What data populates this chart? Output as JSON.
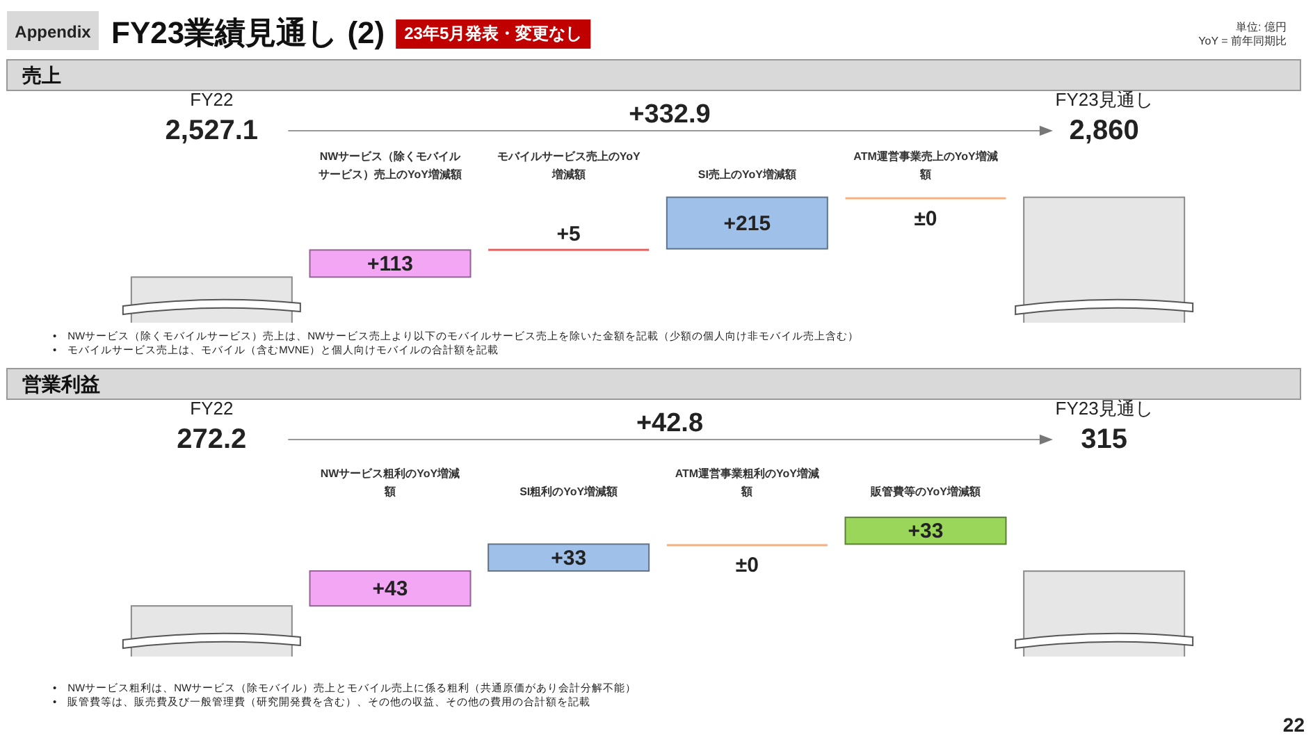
{
  "chart_data": [
    {
      "type": "other",
      "title": "売上",
      "categories": [
        "FY22",
        "NWサービス（除くモバイルサービス）売上のYoY増減額",
        "モバイルサービス売上のYoY増減額",
        "SI売上のYoY増減額",
        "ATM運営事業売上のYoY増減額",
        "FY23見通し"
      ],
      "values": [
        2527.1,
        113,
        5,
        215,
        0,
        2860
      ],
      "colors": [
        "#e6e6e6",
        "#f3a6f3",
        "#e06666",
        "#9fc0e8",
        "#f4b183",
        "#e6e6e6"
      ],
      "value_labels": [
        "2,527.1",
        "+113",
        "+5",
        "+215",
        "±0",
        "2,860"
      ],
      "annotations": [
        "Appendix",
        "FY23業績見通し (2)",
        "23年5月発表・変更なし",
        "単位: 億円",
        "YoY = 前年同期比",
        "+332.9",
        "•　NWサービス（除くモバイルサービス）売上は、NWサービス売上より以下のモバイルサービス売上を除いた金額を記載（少額の個人向け非モバイル売上含む）",
        "•　モバイルサービス売上は、モバイル（含むMVNE）と個人向けモバイルの合計額を記載"
      ]
    },
    {
      "type": "other",
      "title": "営業利益",
      "categories": [
        "FY22",
        "NWサービス粗利のYoY増減額",
        "SI粗利のYoY増減額",
        "ATM運営事業粗利のYoY増減額",
        "販管費等のYoY増減額",
        "FY23見通し"
      ],
      "values": [
        272.2,
        43,
        33,
        0,
        33,
        315
      ],
      "colors": [
        "#e6e6e6",
        "#f3a6f3",
        "#9fc0e8",
        "#f4b183",
        "#9ad65a",
        "#e6e6e6"
      ],
      "value_labels": [
        "272.2",
        "+43",
        "+33",
        "±0",
        "+33",
        "315"
      ],
      "annotations": [
        "+42.8",
        "•　NWサービス粗利は、NWサービス（除モバイル）売上とモバイル売上に係る粗利（共通原価があり会計分解不能）",
        "•　販管費等は、販売費及び一般管理費（研究開発費を含む）、その他の収益、その他の費用の合計額を記載",
        "22"
      ]
    }
  ]
}
